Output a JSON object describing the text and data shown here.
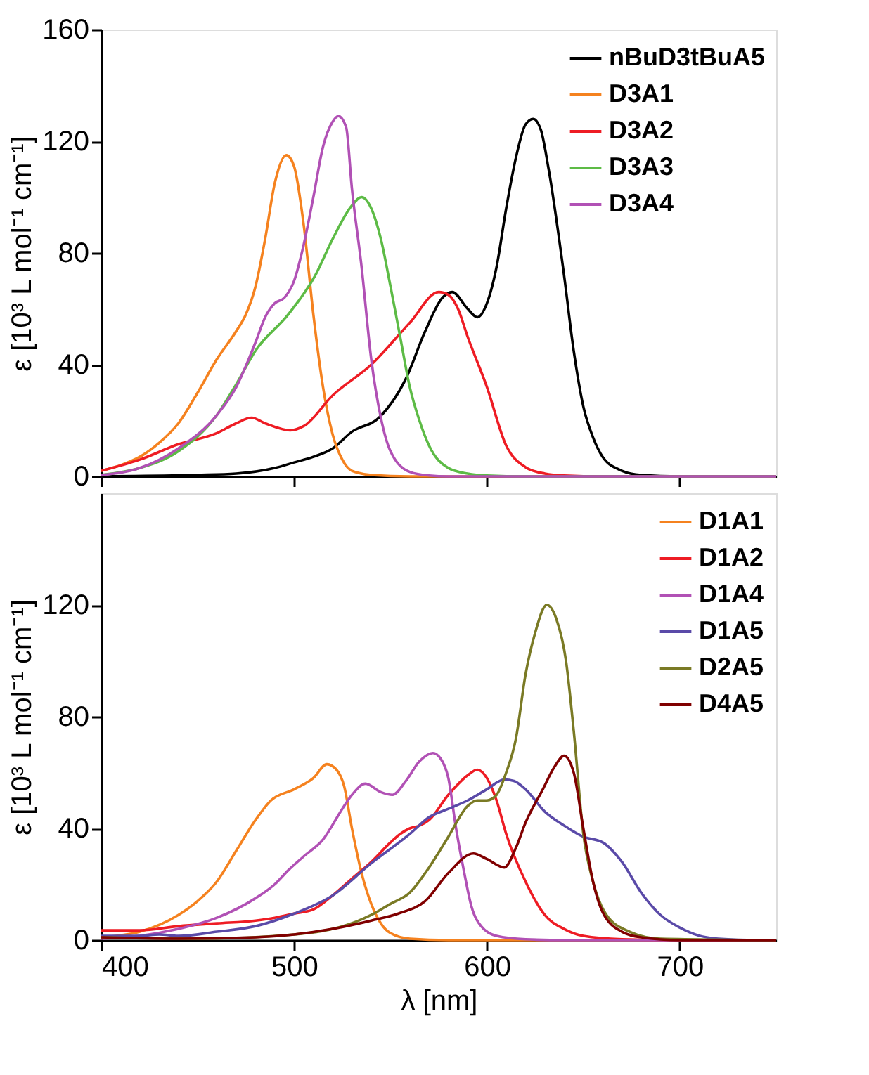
{
  "chart_data": [
    {
      "type": "line",
      "ylabel": "ε [10³ L mol⁻¹ cm⁻¹]",
      "xlim": [
        400,
        750
      ],
      "xticks": [
        400,
        500,
        600,
        700
      ],
      "ylim": [
        0,
        160
      ],
      "yticks": [
        0,
        40,
        80,
        120,
        160
      ],
      "tick_labels": "y",
      "legend": "top right",
      "grid": false,
      "line_style": "solid",
      "series": [
        {
          "name": "nBuD3tBuA5",
          "color": "#000000",
          "x": [
            400,
            450,
            470,
            490,
            500,
            510,
            520,
            530,
            544,
            558,
            568,
            577,
            582,
            590,
            595,
            600,
            605,
            610,
            615,
            620,
            624,
            628,
            632,
            640,
            645,
            650,
            655,
            660,
            670,
            680,
            700,
            750
          ],
          "values": [
            0,
            0.5,
            1,
            3,
            5,
            7,
            10,
            16,
            21,
            35,
            52,
            64,
            66,
            60,
            57,
            62,
            75,
            96,
            114,
            126,
            128,
            124,
            110,
            72,
            45,
            25,
            14,
            7,
            2,
            0.5,
            0,
            0
          ]
        },
        {
          "name": "D3A1",
          "color": "#f5821f",
          "x": [
            400,
            410,
            420,
            430,
            440,
            450,
            460,
            470,
            475,
            480,
            485,
            490,
            496,
            500,
            505,
            510,
            515,
            520,
            525,
            530,
            540,
            560,
            750
          ],
          "values": [
            2,
            4,
            7,
            12,
            19,
            30,
            42,
            52,
            58,
            68,
            85,
            105,
            115,
            111,
            90,
            58,
            32,
            15,
            6,
            2,
            0.5,
            0,
            0
          ]
        },
        {
          "name": "D3A2",
          "color": "#ee1c24",
          "x": [
            400,
            420,
            440,
            460,
            470,
            478,
            485,
            498,
            505,
            520,
            540,
            560,
            575,
            580,
            585,
            590,
            600,
            610,
            620,
            630,
            640,
            660,
            750
          ],
          "values": [
            2,
            6,
            11.5,
            15.5,
            19,
            21,
            19,
            16.5,
            18,
            29,
            40,
            55,
            66,
            65,
            60,
            50,
            32,
            11,
            3.3,
            1,
            0.3,
            0,
            0
          ]
        },
        {
          "name": "D3A3",
          "color": "#5dbb46",
          "x": [
            400,
            420,
            440,
            460,
            470,
            480,
            497,
            511,
            520,
            530,
            535,
            540,
            545,
            550,
            555,
            560,
            565,
            570,
            580,
            590,
            600,
            620,
            750
          ],
          "values": [
            0.5,
            3,
            9,
            22,
            33,
            45,
            58,
            72,
            85,
            97,
            100,
            96,
            85,
            68,
            50,
            32,
            20,
            11,
            3,
            1,
            0.3,
            0,
            0
          ]
        },
        {
          "name": "D3A4",
          "color": "#b151b5",
          "x": [
            400,
            420,
            440,
            460,
            470,
            480,
            485,
            490,
            495,
            500,
            505,
            510,
            515,
            520,
            523,
            527,
            530,
            535,
            540,
            545,
            550,
            560,
            570,
            580,
            750
          ],
          "values": [
            0.5,
            3,
            10,
            22,
            32,
            48,
            57,
            62,
            64,
            70,
            83,
            100,
            118,
            127,
            129,
            125,
            103,
            75,
            42,
            21,
            9,
            1.6,
            0.3,
            0,
            0
          ]
        }
      ]
    },
    {
      "type": "line",
      "xlabel": "λ [nm]",
      "ylabel": "ε [10³ L mol⁻¹ cm⁻¹]",
      "xlim": [
        400,
        750
      ],
      "xticks": [
        400,
        500,
        600,
        700
      ],
      "ylim": [
        0,
        160
      ],
      "yticks": [
        0,
        40,
        80,
        120
      ],
      "legend": "top right",
      "grid": false,
      "line_style": "solid",
      "series": [
        {
          "name": "D1A1",
          "color": "#f5821f",
          "x": [
            400,
            420,
            440,
            450,
            460,
            470,
            480,
            488,
            500,
            510,
            517,
            522,
            526,
            530,
            535,
            540,
            545,
            550,
            560,
            580,
            750
          ],
          "values": [
            1,
            3,
            9,
            14,
            21,
            32,
            43,
            50,
            54,
            58,
            63,
            61,
            55,
            40,
            24,
            13,
            6,
            2.5,
            0.5,
            0,
            0
          ]
        },
        {
          "name": "D1A2",
          "color": "#ee1c24",
          "x": [
            400,
            420,
            440,
            460,
            480,
            490,
            500,
            510,
            520,
            530,
            540,
            550,
            555,
            560,
            565,
            570,
            580,
            590,
            595,
            600,
            605,
            610,
            620,
            630,
            640,
            650,
            670,
            700,
            750
          ],
          "values": [
            3.5,
            3.5,
            5,
            6,
            7,
            8,
            9.5,
            11,
            16,
            22,
            28,
            35,
            38,
            40,
            41,
            43,
            52,
            59,
            61,
            58,
            50,
            38,
            21,
            9,
            4,
            1.5,
            0.3,
            0,
            0
          ]
        },
        {
          "name": "D1A4",
          "color": "#b151b5",
          "x": [
            400,
            420,
            440,
            460,
            480,
            490,
            497,
            505,
            515,
            525,
            530,
            537,
            545,
            551,
            558,
            565,
            572,
            576,
            580,
            584,
            588,
            592,
            597,
            605,
            620,
            640,
            750
          ],
          "values": [
            0.5,
            1.5,
            4,
            8,
            15,
            20,
            25,
            30,
            36,
            47,
            52,
            56,
            53,
            52,
            57,
            64,
            67,
            65,
            58,
            40,
            25,
            12,
            5,
            1.5,
            0.3,
            0,
            0
          ]
        },
        {
          "name": "D1A5",
          "color": "#5a4aa8",
          "x": [
            400,
            420,
            430,
            440,
            460,
            480,
            500,
            520,
            540,
            560,
            570,
            580,
            590,
            600,
            609,
            614,
            620,
            630,
            640,
            650,
            660,
            670,
            680,
            690,
            700,
            710,
            720,
            740,
            750
          ],
          "values": [
            1.5,
            1.5,
            2,
            1.5,
            3,
            5,
            9.5,
            16,
            27.5,
            38,
            44,
            47,
            50,
            54,
            57.5,
            57,
            54,
            46,
            41,
            37,
            35,
            28,
            17,
            9,
            4.5,
            1.6,
            0.5,
            0,
            0
          ]
        },
        {
          "name": "D2A5",
          "color": "#7a7a25",
          "x": [
            400,
            450,
            500,
            520,
            540,
            550,
            560,
            570,
            580,
            590,
            595,
            600,
            605,
            610,
            615,
            620,
            625,
            631,
            636,
            641,
            645,
            650,
            655,
            662,
            674,
            690,
            750
          ],
          "values": [
            1,
            0.5,
            2,
            4,
            9,
            13,
            17,
            26,
            37,
            48,
            50,
            50,
            52,
            60,
            72,
            95,
            110,
            120,
            115,
            100,
            75,
            38,
            21,
            9,
            3,
            0.5,
            0
          ]
        },
        {
          "name": "D4A5",
          "color": "#800000",
          "x": [
            400,
            440,
            480,
            500,
            520,
            540,
            554,
            568,
            580,
            593,
            600,
            609,
            615,
            620,
            629,
            635,
            640,
            645,
            650,
            655,
            660,
            670,
            680,
            700,
            750
          ],
          "values": [
            1,
            0.5,
            1,
            2,
            4,
            7,
            9.5,
            14,
            24,
            31,
            29,
            26,
            33,
            42,
            54,
            62,
            66,
            60,
            40,
            21,
            10,
            3,
            1,
            0,
            0
          ]
        }
      ]
    }
  ]
}
